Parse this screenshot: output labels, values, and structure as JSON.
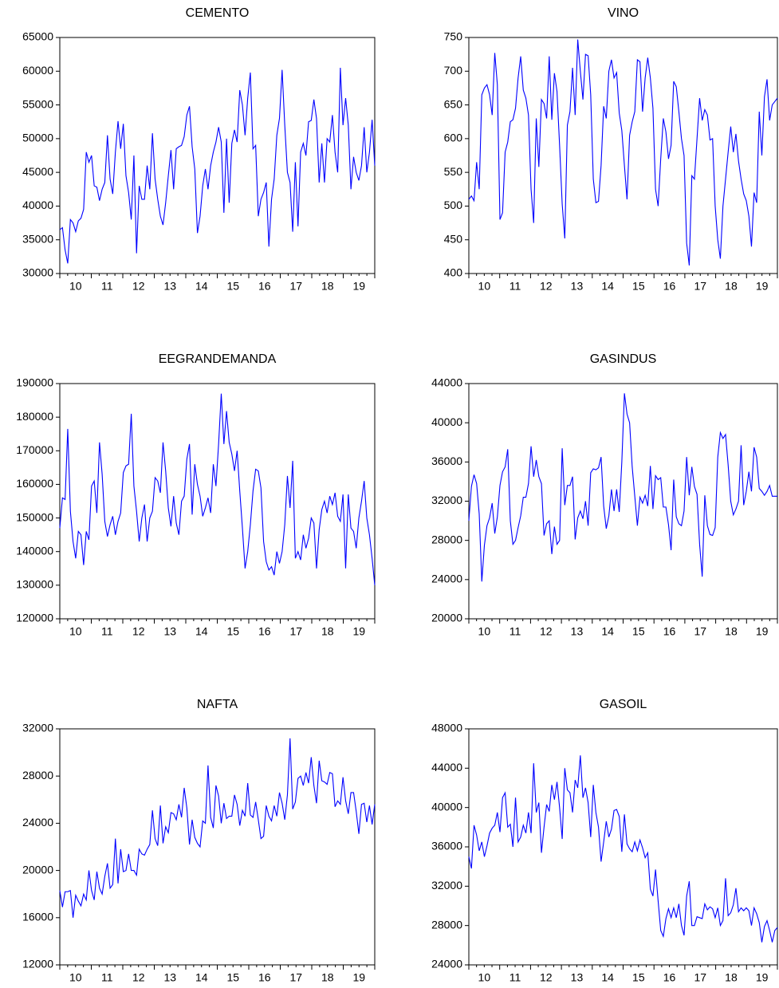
{
  "chart_data": [
    {
      "type": "line",
      "title": "CEMENTO",
      "color": "#0000ff",
      "xlim": [
        2010,
        2020
      ],
      "xticks": [
        {
          "value": 2010.5,
          "label": "10"
        },
        {
          "value": 2011.5,
          "label": "11"
        },
        {
          "value": 2012.5,
          "label": "12"
        },
        {
          "value": 2013.5,
          "label": "13"
        },
        {
          "value": 2014.5,
          "label": "14"
        },
        {
          "value": 2015.5,
          "label": "15"
        },
        {
          "value": 2016.5,
          "label": "16"
        },
        {
          "value": 2017.5,
          "label": "17"
        },
        {
          "value": 2018.5,
          "label": "18"
        },
        {
          "value": 2019.5,
          "label": "19"
        }
      ],
      "ylim": [
        30000,
        65000
      ],
      "yticks": [
        30000,
        35000,
        40000,
        45000,
        50000,
        55000,
        60000,
        65000
      ],
      "values": [
        36500,
        36800,
        33500,
        31500,
        38000,
        37500,
        36200,
        37800,
        38200,
        39500,
        48000,
        46500,
        47500,
        43000,
        42800,
        40800,
        42500,
        43500,
        50500,
        44000,
        41800,
        48000,
        52600,
        48500,
        52200,
        44500,
        42000,
        38000,
        47500,
        33000,
        43000,
        41000,
        41000,
        46000,
        42500,
        50800,
        44000,
        41000,
        38500,
        37200,
        40500,
        44500,
        48300,
        42500,
        48500,
        48800,
        49000,
        50300,
        53500,
        54800,
        48800,
        45500,
        36000,
        38500,
        43000,
        45500,
        42500,
        46000,
        48000,
        49500,
        51700,
        49500,
        39000,
        50000,
        40500,
        49300,
        51300,
        49500,
        57200,
        55000,
        50500,
        56000,
        59800,
        48500,
        49000,
        38500,
        41000,
        42000,
        43500,
        34000,
        41000,
        44000,
        50500,
        53000,
        60200,
        52000,
        45000,
        43500,
        36200,
        46500,
        37000,
        48000,
        49300,
        47500,
        52500,
        52700,
        55800,
        53000,
        43500,
        49300,
        43500,
        50000,
        49500,
        53500,
        48000,
        45000,
        60500,
        52000,
        56000,
        52000,
        42500,
        47300,
        45000,
        43800,
        46000,
        51700,
        45000,
        48000,
        52800,
        46000
      ]
    },
    {
      "type": "line",
      "title": "VINO",
      "color": "#0000ff",
      "xlim": [
        2010,
        2020
      ],
      "xticks": [
        {
          "value": 2010.5,
          "label": "10"
        },
        {
          "value": 2011.5,
          "label": "11"
        },
        {
          "value": 2012.5,
          "label": "12"
        },
        {
          "value": 2013.5,
          "label": "13"
        },
        {
          "value": 2014.5,
          "label": "14"
        },
        {
          "value": 2015.5,
          "label": "15"
        },
        {
          "value": 2016.5,
          "label": "16"
        },
        {
          "value": 2017.5,
          "label": "17"
        },
        {
          "value": 2018.5,
          "label": "18"
        },
        {
          "value": 2019.5,
          "label": "19"
        }
      ],
      "ylim": [
        400,
        750
      ],
      "yticks": [
        400,
        450,
        500,
        550,
        600,
        650,
        700,
        750
      ],
      "values": [
        510,
        515,
        508,
        565,
        525,
        665,
        675,
        680,
        665,
        635,
        727,
        680,
        480,
        490,
        580,
        595,
        625,
        628,
        645,
        690,
        722,
        672,
        660,
        635,
        525,
        475,
        630,
        558,
        658,
        652,
        630,
        722,
        628,
        697,
        670,
        590,
        503,
        452,
        620,
        640,
        705,
        635,
        747,
        700,
        658,
        725,
        723,
        665,
        540,
        505,
        507,
        560,
        648,
        630,
        700,
        717,
        690,
        698,
        638,
        612,
        560,
        510,
        605,
        625,
        640,
        717,
        714,
        640,
        690,
        720,
        690,
        645,
        525,
        500,
        570,
        630,
        610,
        570,
        590,
        685,
        677,
        640,
        600,
        575,
        445,
        412,
        545,
        540,
        600,
        660,
        627,
        643,
        635,
        598,
        600,
        500,
        450,
        422,
        500,
        540,
        580,
        618,
        580,
        607,
        567,
        540,
        518,
        508,
        485,
        440,
        520,
        505,
        640,
        575,
        662,
        688,
        627,
        650,
        655,
        660
      ]
    },
    {
      "type": "line",
      "title": "EEGRANDEMANDA",
      "color": "#0000ff",
      "xlim": [
        2010,
        2020
      ],
      "xticks": [
        {
          "value": 2010.5,
          "label": "10"
        },
        {
          "value": 2011.5,
          "label": "11"
        },
        {
          "value": 2012.5,
          "label": "12"
        },
        {
          "value": 2013.5,
          "label": "13"
        },
        {
          "value": 2014.5,
          "label": "14"
        },
        {
          "value": 2015.5,
          "label": "15"
        },
        {
          "value": 2016.5,
          "label": "16"
        },
        {
          "value": 2017.5,
          "label": "17"
        },
        {
          "value": 2018.5,
          "label": "18"
        },
        {
          "value": 2019.5,
          "label": "19"
        }
      ],
      "ylim": [
        120000,
        190000
      ],
      "yticks": [
        120000,
        130000,
        140000,
        150000,
        160000,
        170000,
        180000,
        190000
      ],
      "values": [
        147000,
        156000,
        155500,
        176500,
        152000,
        143000,
        138000,
        146000,
        145000,
        136000,
        146000,
        143500,
        159500,
        161000,
        151500,
        172500,
        163000,
        149000,
        144500,
        148000,
        150500,
        145000,
        149000,
        151500,
        163500,
        165500,
        166000,
        181000,
        159500,
        152000,
        143000,
        150000,
        154000,
        143000,
        150000,
        152000,
        162000,
        161000,
        157500,
        172500,
        164000,
        153000,
        147500,
        156500,
        148500,
        145000,
        155000,
        156500,
        167500,
        172000,
        151000,
        166000,
        160000,
        156500,
        150500,
        153000,
        156000,
        151500,
        166000,
        159500,
        172000,
        187000,
        172000,
        181800,
        172500,
        169000,
        164000,
        170000,
        158000,
        147000,
        135000,
        140000,
        148000,
        158000,
        164500,
        164000,
        159000,
        143000,
        137000,
        134500,
        135500,
        133000,
        140000,
        136500,
        140000,
        148000,
        162500,
        153000,
        167000,
        138000,
        140000,
        137500,
        145000,
        141000,
        144000,
        150000,
        148500,
        135000,
        146500,
        152500,
        155000,
        151500,
        156500,
        154000,
        157500,
        150500,
        149000,
        157000,
        135000,
        157000,
        147000,
        146000,
        141000,
        150000,
        155000,
        161000,
        150000,
        145000,
        138000,
        130000
      ]
    },
    {
      "type": "line",
      "title": "GASINDUS",
      "color": "#0000ff",
      "xlim": [
        2010,
        2020
      ],
      "xticks": [
        {
          "value": 2010.5,
          "label": "10"
        },
        {
          "value": 2011.5,
          "label": "11"
        },
        {
          "value": 2012.5,
          "label": "12"
        },
        {
          "value": 2013.5,
          "label": "13"
        },
        {
          "value": 2014.5,
          "label": "14"
        },
        {
          "value": 2015.5,
          "label": "15"
        },
        {
          "value": 2016.5,
          "label": "16"
        },
        {
          "value": 2017.5,
          "label": "17"
        },
        {
          "value": 2018.5,
          "label": "18"
        },
        {
          "value": 2019.5,
          "label": "19"
        }
      ],
      "ylim": [
        20000,
        44000
      ],
      "yticks": [
        20000,
        24000,
        28000,
        32000,
        36000,
        40000,
        44000
      ],
      "values": [
        30000,
        33500,
        34700,
        33800,
        30700,
        23800,
        27500,
        29500,
        30300,
        31800,
        28700,
        30400,
        33600,
        35000,
        35500,
        37300,
        30000,
        27600,
        28000,
        29300,
        30500,
        32400,
        32400,
        33800,
        37600,
        34500,
        36200,
        34500,
        33800,
        28500,
        29700,
        30000,
        26600,
        29400,
        27600,
        28000,
        37400,
        31600,
        33600,
        33600,
        34500,
        28100,
        30300,
        31000,
        30200,
        32000,
        29500,
        34900,
        35300,
        35200,
        35400,
        36500,
        31500,
        29200,
        30500,
        33200,
        31000,
        33200,
        30900,
        36000,
        43000,
        40900,
        40000,
        35500,
        32500,
        29500,
        32400,
        31800,
        32600,
        31500,
        35600,
        31200,
        34600,
        34200,
        34400,
        31400,
        31400,
        29600,
        27000,
        34200,
        30400,
        29700,
        29500,
        31000,
        36500,
        32600,
        35500,
        33500,
        32700,
        27600,
        24300,
        32600,
        29500,
        28600,
        28500,
        29300,
        36500,
        39000,
        38400,
        38800,
        35700,
        32000,
        30600,
        31200,
        32000,
        37700,
        31600,
        33000,
        35000,
        33000,
        37500,
        36500,
        33300,
        33000,
        32600,
        33000,
        33600,
        32500,
        32500,
        32500
      ]
    },
    {
      "type": "line",
      "title": "NAFTA",
      "color": "#0000ff",
      "xlim": [
        2010,
        2020
      ],
      "xticks": [
        {
          "value": 2010.5,
          "label": "10"
        },
        {
          "value": 2011.5,
          "label": "11"
        },
        {
          "value": 2012.5,
          "label": "12"
        },
        {
          "value": 2013.5,
          "label": "13"
        },
        {
          "value": 2014.5,
          "label": "14"
        },
        {
          "value": 2015.5,
          "label": "15"
        },
        {
          "value": 2016.5,
          "label": "16"
        },
        {
          "value": 2017.5,
          "label": "17"
        },
        {
          "value": 2018.5,
          "label": "18"
        },
        {
          "value": 2019.5,
          "label": "19"
        }
      ],
      "ylim": [
        12000,
        32000
      ],
      "yticks": [
        12000,
        16000,
        20000,
        24000,
        28000,
        32000
      ],
      "values": [
        18300,
        16900,
        18200,
        18200,
        18300,
        16000,
        17900,
        17400,
        17000,
        18000,
        17500,
        20000,
        18300,
        17500,
        19900,
        18500,
        18000,
        19500,
        20600,
        18500,
        18800,
        22700,
        18900,
        21800,
        19900,
        20000,
        21400,
        20000,
        20000,
        19600,
        21800,
        21400,
        21300,
        21800,
        22200,
        25100,
        22700,
        22100,
        25500,
        22300,
        23700,
        23200,
        24900,
        24800,
        24300,
        25600,
        24500,
        27000,
        25300,
        22200,
        24300,
        22800,
        22300,
        22000,
        24200,
        24000,
        28900,
        24500,
        23600,
        27200,
        26300,
        24000,
        25700,
        24400,
        24600,
        24600,
        26400,
        25600,
        23800,
        25100,
        24600,
        27400,
        24700,
        24500,
        25800,
        24300,
        22700,
        22900,
        25500,
        24600,
        24200,
        25500,
        24600,
        26600,
        25700,
        24300,
        26400,
        31200,
        25200,
        25800,
        27800,
        28000,
        27200,
        28300,
        27400,
        29600,
        27200,
        25700,
        29300,
        27600,
        27500,
        27300,
        28300,
        28200,
        25400,
        25900,
        25600,
        27900,
        25900,
        24800,
        26600,
        26600,
        25000,
        23100,
        25600,
        25700,
        24100,
        25500,
        23900,
        25600
      ]
    },
    {
      "type": "line",
      "title": "GASOIL",
      "color": "#0000ff",
      "xlim": [
        2010,
        2020
      ],
      "xticks": [
        {
          "value": 2010.5,
          "label": "10"
        },
        {
          "value": 2011.5,
          "label": "11"
        },
        {
          "value": 2012.5,
          "label": "12"
        },
        {
          "value": 2013.5,
          "label": "13"
        },
        {
          "value": 2014.5,
          "label": "14"
        },
        {
          "value": 2015.5,
          "label": "15"
        },
        {
          "value": 2016.5,
          "label": "16"
        },
        {
          "value": 2017.5,
          "label": "17"
        },
        {
          "value": 2018.5,
          "label": "18"
        },
        {
          "value": 2019.5,
          "label": "19"
        }
      ],
      "ylim": [
        24000,
        48000
      ],
      "yticks": [
        24000,
        28000,
        32000,
        36000,
        40000,
        44000,
        48000
      ],
      "values": [
        35000,
        33800,
        38200,
        37200,
        35600,
        36500,
        35000,
        36100,
        37400,
        37900,
        38200,
        39500,
        37500,
        41000,
        41500,
        38000,
        38300,
        36000,
        41000,
        36500,
        37000,
        38200,
        37400,
        39500,
        37400,
        44500,
        39500,
        40500,
        35400,
        38000,
        40300,
        39600,
        42300,
        40800,
        42600,
        40000,
        36800,
        44000,
        41800,
        41500,
        39500,
        42800,
        42000,
        45300,
        41000,
        42000,
        40500,
        37000,
        42300,
        39500,
        38000,
        34500,
        36500,
        38600,
        37000,
        37800,
        39700,
        39800,
        39100,
        35500,
        39300,
        36300,
        35800,
        35500,
        36500,
        35600,
        36700,
        35900,
        34900,
        35400,
        31700,
        31000,
        33700,
        30500,
        27500,
        26900,
        28700,
        29700,
        28800,
        29800,
        28800,
        30200,
        28000,
        27000,
        31000,
        32500,
        28000,
        28000,
        28900,
        28800,
        28700,
        30200,
        29600,
        29900,
        29700,
        28800,
        29800,
        28000,
        28500,
        32800,
        29000,
        29300,
        30100,
        31800,
        29400,
        29800,
        29500,
        29800,
        29500,
        28000,
        29800,
        29200,
        28300,
        26300,
        27900,
        28500,
        27500,
        26300,
        27500,
        27800
      ]
    }
  ]
}
